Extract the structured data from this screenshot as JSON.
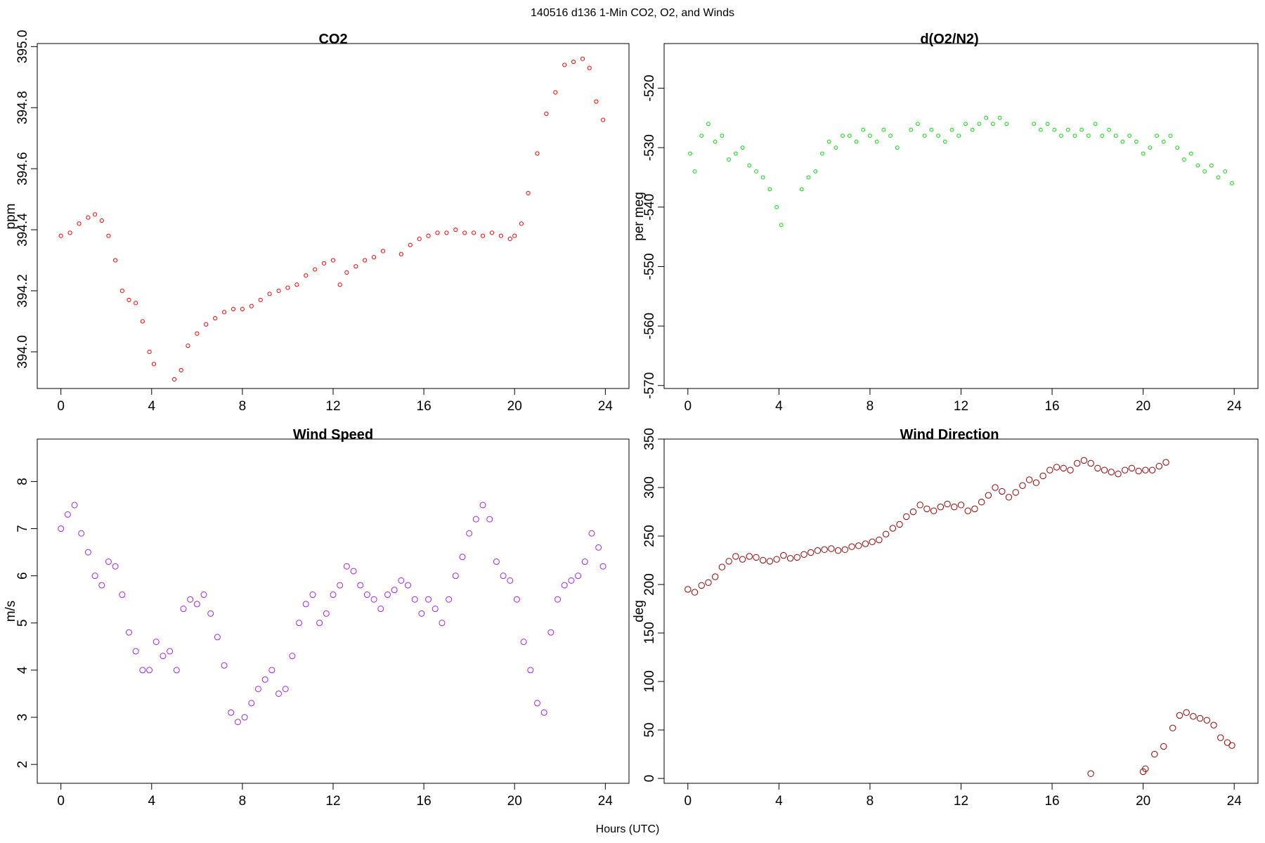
{
  "figure": {
    "suptitle": "140516   d136   1-Min CO2, O2, and Winds",
    "xlabel": "Hours (UTC)"
  },
  "chart_data": [
    {
      "type": "scatter",
      "title": "CO2",
      "ylabel": "ppm",
      "xlim": [
        0,
        24
      ],
      "ylim": [
        393.88,
        395.01
      ],
      "xticks": [
        "0",
        "4",
        "8",
        "12",
        "16",
        "20",
        "24"
      ],
      "yticks": [
        "394.0",
        "394.2",
        "394.4",
        "394.6",
        "394.8",
        "395.0"
      ],
      "point_color": "#ff0000",
      "x": [
        0.0,
        0.4,
        0.8,
        1.2,
        1.5,
        1.8,
        2.1,
        2.4,
        2.7,
        3.0,
        3.3,
        3.6,
        3.9,
        4.1,
        5.0,
        5.3,
        5.6,
        6.0,
        6.4,
        6.8,
        7.2,
        7.6,
        8.0,
        8.4,
        8.8,
        9.2,
        9.6,
        10.0,
        10.4,
        10.8,
        11.2,
        11.6,
        12.0,
        12.3,
        12.6,
        13.0,
        13.4,
        13.8,
        14.2,
        15.0,
        15.4,
        15.8,
        16.2,
        16.6,
        17.0,
        17.4,
        17.8,
        18.2,
        18.6,
        19.0,
        19.4,
        19.8,
        20.0,
        20.3,
        20.6,
        21.0,
        21.4,
        21.8,
        22.2,
        22.6,
        23.0,
        23.3,
        23.6,
        23.9
      ],
      "y": [
        394.38,
        394.39,
        394.42,
        394.44,
        394.45,
        394.43,
        394.38,
        394.3,
        394.2,
        394.17,
        394.16,
        394.1,
        394.0,
        393.96,
        393.91,
        393.94,
        394.02,
        394.06,
        394.09,
        394.11,
        394.13,
        394.14,
        394.14,
        394.15,
        394.17,
        394.19,
        394.2,
        394.21,
        394.22,
        394.25,
        394.27,
        394.29,
        394.3,
        394.22,
        394.26,
        394.28,
        394.3,
        394.31,
        394.33,
        394.32,
        394.35,
        394.37,
        394.38,
        394.39,
        394.39,
        394.4,
        394.39,
        394.39,
        394.38,
        394.39,
        394.38,
        394.37,
        394.38,
        394.42,
        394.52,
        394.65,
        394.78,
        394.85,
        394.94,
        394.95,
        394.96,
        394.93,
        394.82,
        394.76
      ]
    },
    {
      "type": "scatter",
      "title": "d(O2/N2)",
      "ylabel": "per meg",
      "xlim": [
        0,
        24
      ],
      "ylim": [
        -570.5,
        -512.5
      ],
      "xticks": [
        "0",
        "4",
        "8",
        "12",
        "16",
        "20",
        "24"
      ],
      "yticks": [
        "-570",
        "-560",
        "-550",
        "-540",
        "-530",
        "-520"
      ],
      "point_color": "#00dd00",
      "x": [
        0.1,
        0.3,
        0.6,
        0.9,
        1.2,
        1.5,
        1.8,
        2.1,
        2.4,
        2.7,
        3.0,
        3.3,
        3.6,
        3.9,
        4.1,
        5.0,
        5.3,
        5.6,
        5.9,
        6.2,
        6.5,
        6.8,
        7.1,
        7.4,
        7.7,
        8.0,
        8.3,
        8.6,
        8.9,
        9.2,
        9.8,
        10.1,
        10.4,
        10.7,
        11.0,
        11.3,
        11.6,
        11.9,
        12.2,
        12.5,
        12.8,
        13.1,
        13.4,
        13.7,
        14.0,
        15.2,
        15.5,
        15.8,
        16.1,
        16.4,
        16.7,
        17.0,
        17.3,
        17.6,
        17.9,
        18.2,
        18.5,
        18.8,
        19.1,
        19.4,
        19.7,
        20.0,
        20.3,
        20.6,
        20.9,
        21.2,
        21.5,
        21.8,
        22.1,
        22.4,
        22.7,
        23.0,
        23.3,
        23.6,
        23.9
      ],
      "y": [
        -531,
        -534,
        -528,
        -526,
        -529,
        -528,
        -532,
        -531,
        -530,
        -533,
        -534,
        -535,
        -537,
        -540,
        -543,
        -537,
        -535,
        -534,
        -531,
        -529,
        -530,
        -528,
        -528,
        -529,
        -527,
        -528,
        -529,
        -527,
        -528,
        -530,
        -527,
        -526,
        -528,
        -527,
        -528,
        -529,
        -527,
        -528,
        -526,
        -527,
        -526,
        -525,
        -526,
        -525,
        -526,
        -526,
        -527,
        -526,
        -527,
        -528,
        -527,
        -528,
        -527,
        -528,
        -526,
        -528,
        -527,
        -528,
        -529,
        -528,
        -529,
        -531,
        -530,
        -528,
        -529,
        -528,
        -530,
        -532,
        -531,
        -533,
        -534,
        -533,
        -535,
        -534,
        -536
      ]
    },
    {
      "type": "scatter",
      "title": "Wind Speed",
      "ylabel": "m/s",
      "xlim": [
        0,
        24
      ],
      "ylim": [
        1.6,
        8.9
      ],
      "xticks": [
        "0",
        "4",
        "8",
        "12",
        "16",
        "20",
        "24"
      ],
      "yticks": [
        "2",
        "3",
        "4",
        "5",
        "6",
        "7",
        "8"
      ],
      "point_color": "#a020f0",
      "x": [
        0.0,
        0.3,
        0.6,
        0.9,
        1.2,
        1.5,
        1.8,
        2.1,
        2.4,
        2.7,
        3.0,
        3.3,
        3.6,
        3.9,
        4.2,
        4.5,
        4.8,
        5.1,
        5.4,
        5.7,
        6.0,
        6.3,
        6.6,
        6.9,
        7.2,
        7.5,
        7.8,
        8.1,
        8.4,
        8.7,
        9.0,
        9.3,
        9.6,
        9.9,
        10.2,
        10.5,
        10.8,
        11.1,
        11.4,
        11.7,
        12.0,
        12.3,
        12.6,
        12.9,
        13.2,
        13.5,
        13.8,
        14.1,
        14.4,
        14.7,
        15.0,
        15.3,
        15.6,
        15.9,
        16.2,
        16.5,
        16.8,
        17.1,
        17.4,
        17.7,
        18.0,
        18.3,
        18.6,
        18.9,
        19.2,
        19.5,
        19.8,
        20.1,
        20.4,
        20.7,
        21.0,
        21.3,
        21.6,
        21.9,
        22.2,
        22.5,
        22.8,
        23.1,
        23.4,
        23.7,
        23.9
      ],
      "y": [
        7.0,
        7.3,
        7.5,
        6.9,
        6.5,
        6.0,
        5.8,
        6.3,
        6.2,
        5.6,
        4.8,
        4.4,
        4.0,
        4.0,
        4.6,
        4.3,
        4.4,
        4.0,
        5.3,
        5.5,
        5.4,
        5.6,
        5.2,
        4.7,
        4.1,
        3.1,
        2.9,
        3.0,
        3.3,
        3.6,
        3.8,
        4.0,
        3.5,
        3.6,
        4.3,
        5.0,
        5.4,
        5.6,
        5.0,
        5.2,
        5.6,
        5.8,
        6.2,
        6.1,
        5.8,
        5.6,
        5.5,
        5.3,
        5.6,
        5.7,
        5.9,
        5.8,
        5.5,
        5.2,
        5.5,
        5.3,
        5.0,
        5.5,
        6.0,
        6.4,
        6.9,
        7.2,
        7.5,
        7.2,
        6.3,
        6.0,
        5.9,
        5.5,
        4.6,
        4.0,
        3.3,
        3.1,
        4.8,
        5.5,
        5.8,
        5.9,
        6.0,
        6.3,
        6.9,
        6.6,
        6.2
      ]
    },
    {
      "type": "scatter",
      "title": "Wind Direction",
      "ylabel": "deg",
      "xlim": [
        0,
        24
      ],
      "ylim": [
        -5,
        350
      ],
      "xticks": [
        "0",
        "4",
        "8",
        "12",
        "16",
        "20",
        "24"
      ],
      "yticks": [
        "0",
        "50",
        "100",
        "150",
        "200",
        "250",
        "300",
        "350"
      ],
      "point_color": "#990000",
      "x": [
        0.0,
        0.3,
        0.6,
        0.9,
        1.2,
        1.5,
        1.8,
        2.1,
        2.4,
        2.7,
        3.0,
        3.3,
        3.6,
        3.9,
        4.2,
        4.5,
        4.8,
        5.1,
        5.4,
        5.7,
        6.0,
        6.3,
        6.6,
        6.9,
        7.2,
        7.5,
        7.8,
        8.1,
        8.4,
        8.7,
        9.0,
        9.3,
        9.6,
        9.9,
        10.2,
        10.5,
        10.8,
        11.1,
        11.4,
        11.7,
        12.0,
        12.3,
        12.6,
        12.9,
        13.2,
        13.5,
        13.8,
        14.1,
        14.4,
        14.7,
        15.0,
        15.3,
        15.6,
        15.9,
        16.2,
        16.5,
        16.8,
        17.1,
        17.4,
        17.7,
        18.0,
        18.3,
        18.6,
        18.9,
        19.2,
        19.5,
        19.8,
        20.1,
        20.4,
        20.7,
        21.0,
        17.7,
        20.0,
        20.1,
        20.5,
        20.9,
        21.3,
        21.6,
        21.9,
        22.2,
        22.5,
        22.8,
        23.1,
        23.4,
        23.7,
        23.9
      ],
      "y": [
        195,
        192,
        199,
        202,
        208,
        218,
        224,
        229,
        226,
        229,
        228,
        225,
        224,
        226,
        230,
        227,
        228,
        231,
        233,
        235,
        236,
        237,
        235,
        236,
        239,
        240,
        242,
        244,
        246,
        252,
        258,
        262,
        270,
        275,
        282,
        278,
        276,
        280,
        283,
        280,
        282,
        276,
        278,
        285,
        292,
        300,
        296,
        290,
        295,
        302,
        308,
        305,
        312,
        318,
        321,
        320,
        318,
        325,
        328,
        325,
        320,
        318,
        316,
        314,
        318,
        320,
        317,
        318,
        318,
        322,
        326,
        5,
        7,
        10,
        25,
        33,
        52,
        65,
        68,
        64,
        62,
        60,
        55,
        42,
        37,
        34
      ]
    }
  ]
}
